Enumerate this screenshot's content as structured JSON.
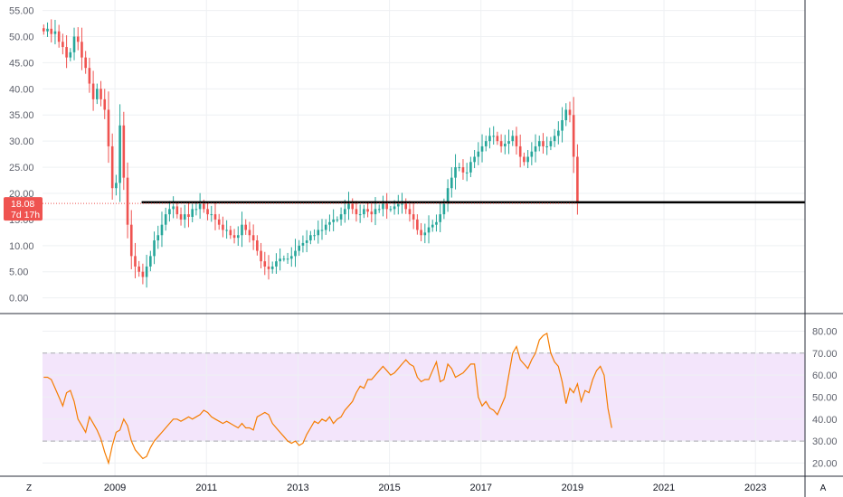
{
  "colors": {
    "up": "#26a69a",
    "down": "#ef5350",
    "rsi_line": "#f57c00",
    "rsi_band": "#f3e5fb",
    "support_line": "#000000",
    "price_tag": "#ef5350"
  },
  "corner_buttons": {
    "left": "Z",
    "right": "A"
  },
  "price_tag": {
    "price": "18.08",
    "countdown": "7d 17h"
  },
  "chart_data": [
    {
      "type": "candlestick",
      "title": "",
      "interval": "monthly",
      "x_range": [
        "2007-06",
        "2024-02"
      ],
      "ylim": [
        -3,
        57
      ],
      "yticks": [
        "0.00",
        "5.00",
        "10.00",
        "15.00",
        "20.00",
        "25.00",
        "30.00",
        "35.00",
        "40.00",
        "45.00",
        "50.00",
        "55.00"
      ],
      "xticks": [
        "2009",
        "2011",
        "2013",
        "2015",
        "2017",
        "2019",
        "2021",
        "2023"
      ],
      "grid": true,
      "last_price": 18.08,
      "close_series": {
        "start": "2007-06",
        "step": "1 month",
        "values": [
          51,
          51.5,
          50.5,
          51,
          49,
          48,
          46,
          47,
          50,
          49,
          46,
          44,
          41,
          38,
          40,
          38,
          36,
          29,
          21,
          22,
          33,
          23,
          14,
          8,
          6,
          5,
          4,
          6,
          8,
          11,
          12,
          14,
          16,
          17,
          17.5,
          16,
          15,
          16,
          15.5,
          17,
          17,
          18,
          17,
          16,
          16,
          15,
          14,
          13,
          13,
          12,
          11.5,
          12,
          14,
          13,
          12,
          11,
          9,
          7,
          6,
          5.5,
          6,
          7,
          7.5,
          7.5,
          7.5,
          8,
          9,
          10,
          10.5,
          11,
          12,
          12,
          13,
          13,
          14,
          14.5,
          15,
          15,
          16,
          17,
          18,
          17,
          16,
          16,
          17,
          16.5,
          16,
          17,
          17,
          18,
          17,
          17,
          17.5,
          18,
          18,
          17,
          16,
          15,
          13,
          12,
          12.5,
          13.5,
          14,
          14.5,
          16,
          18,
          21,
          23,
          25,
          25,
          24,
          24,
          26,
          27,
          28,
          29,
          30,
          31,
          31,
          30,
          29,
          29.5,
          30,
          31,
          29,
          27,
          26,
          27,
          28,
          29,
          30,
          29,
          29,
          30,
          31,
          32,
          34,
          36,
          35,
          27,
          18.08
        ]
      },
      "levels": [
        {
          "label": "",
          "value": 18.3,
          "from": "2009-08",
          "to": "2024-02"
        }
      ]
    },
    {
      "type": "line",
      "name": "RSI",
      "title": "",
      "ylim": [
        14,
        88
      ],
      "yticks": [
        "20.00",
        "30.00",
        "40.00",
        "50.00",
        "60.00",
        "70.00",
        "80.00"
      ],
      "band": [
        30,
        70
      ],
      "grid": true,
      "series": [
        {
          "name": "",
          "start": "2007-06",
          "step": "1 month",
          "values": [
            59,
            59,
            58,
            54,
            50,
            46,
            52,
            53,
            48,
            40,
            37,
            34,
            41,
            38,
            35,
            31,
            25,
            20,
            28,
            34,
            35,
            40,
            37,
            30,
            26,
            24,
            22,
            23,
            27,
            30,
            32,
            34,
            36,
            38,
            40,
            40,
            39,
            40,
            41,
            40,
            41,
            42,
            44,
            43,
            41,
            40,
            39,
            38,
            39,
            38,
            37,
            36,
            38,
            36,
            36,
            35,
            41,
            42,
            43,
            42,
            38,
            36,
            34,
            32,
            30,
            29,
            30,
            28,
            29,
            33,
            36,
            39,
            38,
            40,
            39,
            41,
            38,
            40,
            41,
            44,
            46,
            48,
            52,
            55,
            54,
            58,
            58,
            60,
            62,
            64,
            62,
            60,
            61,
            63,
            65,
            67,
            65,
            64,
            59,
            57,
            58,
            58,
            62,
            66,
            57,
            58,
            65,
            63,
            59,
            60,
            61,
            63,
            65,
            65,
            50,
            46,
            48,
            45,
            44,
            42,
            46,
            50,
            60,
            70,
            73,
            67,
            65,
            63,
            67,
            70,
            76,
            78,
            79,
            70,
            66,
            64,
            57,
            47,
            54,
            52,
            56,
            48,
            53,
            52,
            58,
            62,
            64,
            60,
            45,
            36
          ]
        }
      ]
    }
  ]
}
